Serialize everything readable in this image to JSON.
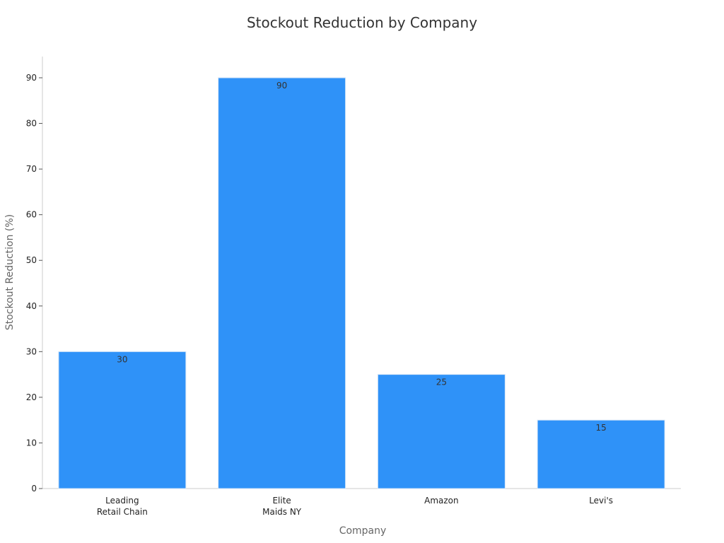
{
  "chart_data": {
    "type": "bar",
    "title": "Stockout Reduction by Company",
    "xlabel": "Company",
    "ylabel": "Stockout Reduction (%)",
    "categories": [
      [
        "Leading",
        "Retail Chain"
      ],
      [
        "Elite",
        "Maids NY"
      ],
      [
        "Amazon"
      ],
      [
        "Levi's"
      ]
    ],
    "values": [
      30,
      90,
      25,
      15
    ],
    "data_labels": [
      "30",
      "90",
      "25",
      "15"
    ],
    "yticks": [
      0,
      10,
      20,
      30,
      40,
      50,
      60,
      70,
      80,
      90
    ],
    "ylim": [
      0,
      95
    ],
    "grid": false,
    "legend": "none",
    "bar_color": "#2F92F8",
    "bar_edge_color": "#D6E6F7"
  }
}
